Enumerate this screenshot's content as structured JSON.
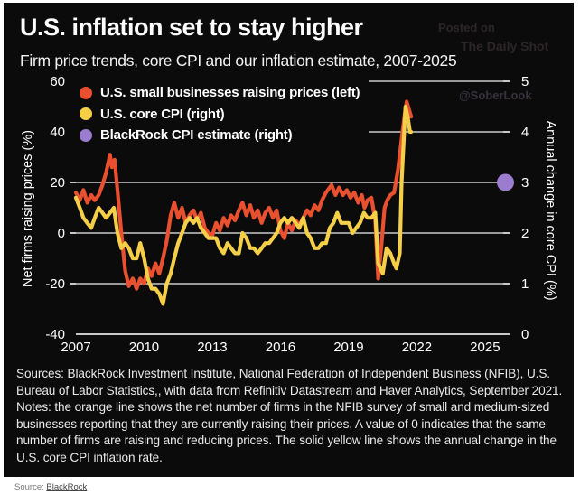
{
  "chart_data": {
    "type": "line",
    "title": "U.S. inflation set to stay higher",
    "subtitle": "Firm price trends, core CPI and our inflation estimate, 2007-2025",
    "watermark": {
      "line1": "Posted on",
      "line2": "The Daily Shot",
      "handle": "@SoberLook"
    },
    "grid_color": "#c9c9c9",
    "legend": [
      {
        "label": "U.S. small businesses raising prices (left)",
        "color": "#e8502f"
      },
      {
        "label": "U.S. core CPI (right)",
        "color": "#f6cf48"
      },
      {
        "label": "BlackRock CPI estimate (right)",
        "color": "#9b7cce"
      }
    ],
    "left_axis": {
      "title": "Net firms raising prices (%)",
      "ticks": [
        60,
        40,
        20,
        0,
        -20,
        -40
      ],
      "range": [
        -40,
        60
      ]
    },
    "right_axis": {
      "title": "Annual change in core CPI (%)",
      "ticks": [
        5,
        4,
        3,
        2,
        1,
        0
      ],
      "range": [
        0,
        5
      ]
    },
    "x_axis": {
      "ticks": [
        2007,
        2010,
        2013,
        2016,
        2019,
        2022,
        2025
      ],
      "range": [
        2007,
        2025.9
      ]
    },
    "series": [
      {
        "name": "U.S. small businesses raising prices",
        "axis": "left",
        "color": "#e8502f",
        "points": [
          [
            2007.0,
            16
          ],
          [
            2007.17,
            13
          ],
          [
            2007.33,
            17
          ],
          [
            2007.5,
            12
          ],
          [
            2007.67,
            15
          ],
          [
            2007.83,
            13
          ],
          [
            2008.0,
            15
          ],
          [
            2008.17,
            19
          ],
          [
            2008.33,
            24
          ],
          [
            2008.5,
            31
          ],
          [
            2008.58,
            26
          ],
          [
            2008.7,
            29
          ],
          [
            2008.83,
            17
          ],
          [
            2009.0,
            0
          ],
          [
            2009.17,
            -15
          ],
          [
            2009.33,
            -21
          ],
          [
            2009.5,
            -18
          ],
          [
            2009.67,
            -22
          ],
          [
            2009.83,
            -18
          ],
          [
            2010.0,
            -20
          ],
          [
            2010.17,
            -14
          ],
          [
            2010.33,
            -17
          ],
          [
            2010.5,
            -12
          ],
          [
            2010.67,
            -16
          ],
          [
            2010.83,
            -10
          ],
          [
            2011.0,
            -3
          ],
          [
            2011.17,
            7
          ],
          [
            2011.33,
            12
          ],
          [
            2011.5,
            6
          ],
          [
            2011.67,
            10
          ],
          [
            2011.83,
            4
          ],
          [
            2012.0,
            7
          ],
          [
            2012.17,
            9
          ],
          [
            2012.33,
            5
          ],
          [
            2012.5,
            8
          ],
          [
            2012.67,
            2
          ],
          [
            2012.83,
            0
          ],
          [
            2013.0,
            -1
          ],
          [
            2013.17,
            4
          ],
          [
            2013.33,
            1
          ],
          [
            2013.5,
            6
          ],
          [
            2013.67,
            3
          ],
          [
            2013.83,
            7
          ],
          [
            2014.0,
            5
          ],
          [
            2014.17,
            9
          ],
          [
            2014.33,
            12
          ],
          [
            2014.5,
            7
          ],
          [
            2014.67,
            11
          ],
          [
            2014.83,
            6
          ],
          [
            2015.0,
            9
          ],
          [
            2015.17,
            4
          ],
          [
            2015.33,
            8
          ],
          [
            2015.5,
            10
          ],
          [
            2015.67,
            6
          ],
          [
            2015.83,
            9
          ],
          [
            2016.0,
            1
          ],
          [
            2016.17,
            -2
          ],
          [
            2016.33,
            4
          ],
          [
            2016.5,
            1
          ],
          [
            2016.67,
            5
          ],
          [
            2016.83,
            3
          ],
          [
            2017.0,
            6
          ],
          [
            2017.17,
            9
          ],
          [
            2017.33,
            7
          ],
          [
            2017.5,
            11
          ],
          [
            2017.67,
            9
          ],
          [
            2017.83,
            13
          ],
          [
            2018.0,
            16
          ],
          [
            2018.25,
            19
          ],
          [
            2018.42,
            15
          ],
          [
            2018.58,
            18
          ],
          [
            2018.75,
            15
          ],
          [
            2018.92,
            17
          ],
          [
            2019.08,
            14
          ],
          [
            2019.25,
            16
          ],
          [
            2019.42,
            12
          ],
          [
            2019.58,
            15
          ],
          [
            2019.7,
            10
          ],
          [
            2019.83,
            13
          ],
          [
            2020.0,
            14
          ],
          [
            2020.17,
            5
          ],
          [
            2020.3,
            -18
          ],
          [
            2020.45,
            -4
          ],
          [
            2020.58,
            10
          ],
          [
            2020.7,
            13
          ],
          [
            2020.83,
            15
          ],
          [
            2021.0,
            16
          ],
          [
            2021.17,
            25
          ],
          [
            2021.33,
            37
          ],
          [
            2021.45,
            46
          ],
          [
            2021.55,
            52
          ],
          [
            2021.65,
            49
          ],
          [
            2021.75,
            46
          ]
        ]
      },
      {
        "name": "U.S. core CPI",
        "axis": "right",
        "color": "#f6cf48",
        "points": [
          [
            2007.0,
            2.7
          ],
          [
            2007.17,
            2.5
          ],
          [
            2007.33,
            2.3
          ],
          [
            2007.5,
            2.2
          ],
          [
            2007.67,
            2.1
          ],
          [
            2007.83,
            2.3
          ],
          [
            2008.0,
            2.5
          ],
          [
            2008.17,
            2.4
          ],
          [
            2008.33,
            2.3
          ],
          [
            2008.5,
            2.4
          ],
          [
            2008.67,
            2.5
          ],
          [
            2008.83,
            2.0
          ],
          [
            2009.0,
            1.7
          ],
          [
            2009.17,
            1.8
          ],
          [
            2009.33,
            1.7
          ],
          [
            2009.5,
            1.5
          ],
          [
            2009.67,
            1.5
          ],
          [
            2009.83,
            1.8
          ],
          [
            2010.0,
            1.5
          ],
          [
            2010.17,
            1.1
          ],
          [
            2010.33,
            0.9
          ],
          [
            2010.5,
            0.9
          ],
          [
            2010.67,
            0.8
          ],
          [
            2010.83,
            0.6
          ],
          [
            2011.0,
            1.0
          ],
          [
            2011.17,
            1.2
          ],
          [
            2011.33,
            1.5
          ],
          [
            2011.5,
            1.8
          ],
          [
            2011.67,
            2.0
          ],
          [
            2011.83,
            2.2
          ],
          [
            2012.0,
            2.3
          ],
          [
            2012.17,
            2.2
          ],
          [
            2012.33,
            2.3
          ],
          [
            2012.5,
            2.1
          ],
          [
            2012.67,
            2.0
          ],
          [
            2012.83,
            1.9
          ],
          [
            2013.0,
            1.9
          ],
          [
            2013.17,
            1.9
          ],
          [
            2013.33,
            1.7
          ],
          [
            2013.5,
            1.6
          ],
          [
            2013.67,
            1.8
          ],
          [
            2013.83,
            1.7
          ],
          [
            2014.0,
            1.6
          ],
          [
            2014.17,
            1.6
          ],
          [
            2014.33,
            2.0
          ],
          [
            2014.5,
            1.9
          ],
          [
            2014.67,
            1.7
          ],
          [
            2014.83,
            1.7
          ],
          [
            2015.0,
            1.6
          ],
          [
            2015.17,
            1.7
          ],
          [
            2015.33,
            1.8
          ],
          [
            2015.5,
            1.8
          ],
          [
            2015.67,
            1.9
          ],
          [
            2015.83,
            2.0
          ],
          [
            2016.0,
            2.2
          ],
          [
            2016.17,
            2.3
          ],
          [
            2016.33,
            2.2
          ],
          [
            2016.5,
            2.3
          ],
          [
            2016.67,
            2.2
          ],
          [
            2016.83,
            2.1
          ],
          [
            2017.0,
            2.3
          ],
          [
            2017.17,
            2.0
          ],
          [
            2017.33,
            1.9
          ],
          [
            2017.5,
            1.7
          ],
          [
            2017.67,
            1.7
          ],
          [
            2017.83,
            1.8
          ],
          [
            2018.0,
            1.8
          ],
          [
            2018.17,
            2.1
          ],
          [
            2018.33,
            2.2
          ],
          [
            2018.5,
            2.4
          ],
          [
            2018.67,
            2.2
          ],
          [
            2018.83,
            2.2
          ],
          [
            2019.0,
            2.2
          ],
          [
            2019.17,
            2.0
          ],
          [
            2019.33,
            2.1
          ],
          [
            2019.5,
            2.2
          ],
          [
            2019.67,
            2.4
          ],
          [
            2019.83,
            2.3
          ],
          [
            2020.0,
            2.3
          ],
          [
            2020.17,
            2.4
          ],
          [
            2020.3,
            1.4
          ],
          [
            2020.5,
            1.2
          ],
          [
            2020.67,
            1.7
          ],
          [
            2020.83,
            1.6
          ],
          [
            2021.0,
            1.4
          ],
          [
            2021.1,
            1.3
          ],
          [
            2021.25,
            1.6
          ],
          [
            2021.33,
            3.0
          ],
          [
            2021.42,
            3.8
          ],
          [
            2021.5,
            4.5
          ],
          [
            2021.6,
            4.3
          ],
          [
            2021.7,
            4.0
          ],
          [
            2021.75,
            4.0
          ]
        ]
      },
      {
        "name": "BlackRock CPI estimate",
        "axis": "right",
        "style": "point",
        "color": "#9b7cce",
        "point": [
          2025.9,
          3.0
        ]
      }
    ],
    "notes_lines": [
      "Sources: BlackRock Investment Institute, National Federation of Independent Business (NFIB), U.S.",
      "Bureau of Labor Statistics,, with data from Refinitiv Datastream and Haver Analytics, September 2021.",
      "Notes: the orange line shows the net number of firms in the NFIB survey of small and medium-sized",
      "businesses reporting that they are currently raising their prices. A value of 0 indicates that the same",
      "number of firms are raising and reducing prices. The solid yellow line shows the annual change in the",
      "U.S. core CPI inflation rate."
    ]
  },
  "footer": {
    "label": "Source:",
    "link": "BlackRock"
  }
}
